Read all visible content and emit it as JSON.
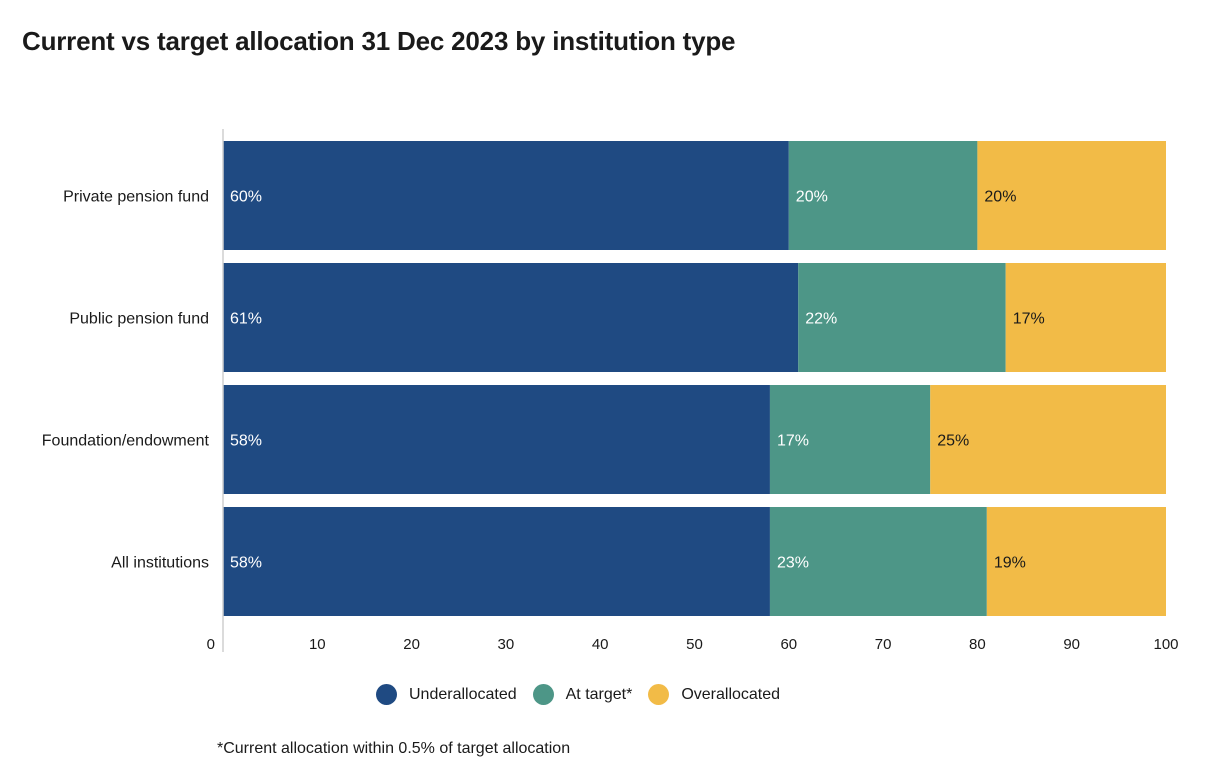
{
  "title": "Current vs target allocation 31 Dec 2023 by institution type",
  "footnote": "*Current allocation within 0.5% of target allocation",
  "legend": [
    {
      "label": "Underallocated",
      "color": "#1f4a82"
    },
    {
      "label": "At target*",
      "color": "#4d9687"
    },
    {
      "label": "Overallocated",
      "color": "#f2bb47"
    }
  ],
  "chart_data": {
    "type": "bar",
    "orientation": "horizontal",
    "stacked": true,
    "title": "Current vs target allocation 31 Dec 2023 by institution type",
    "categories": [
      "Private pension fund",
      "Public pension fund",
      "Foundation/endowment",
      "All institutions"
    ],
    "series": [
      {
        "name": "Underallocated",
        "values": [
          60,
          61,
          58,
          58
        ],
        "labels": [
          "60%",
          "61%",
          "58%",
          "58%"
        ],
        "color": "#1f4a82",
        "label_color": "#ffffff"
      },
      {
        "name": "At target*",
        "values": [
          20,
          22,
          17,
          23
        ],
        "labels": [
          "20%",
          "22%",
          "17%",
          "23%"
        ],
        "color": "#4d9687",
        "label_color": "#ffffff"
      },
      {
        "name": "Overallocated",
        "values": [
          20,
          17,
          25,
          19
        ],
        "labels": [
          "20%",
          "17%",
          "25%",
          "19%"
        ],
        "color": "#f2bb47",
        "label_color": "#1a1a1a"
      }
    ],
    "xlim": [
      0,
      100
    ],
    "x_ticks": [
      "0",
      "10",
      "20",
      "30",
      "40",
      "50",
      "60",
      "70",
      "80",
      "90",
      "100"
    ],
    "xlabel": "",
    "ylabel": "",
    "grid": false,
    "legend_position": "bottom"
  }
}
